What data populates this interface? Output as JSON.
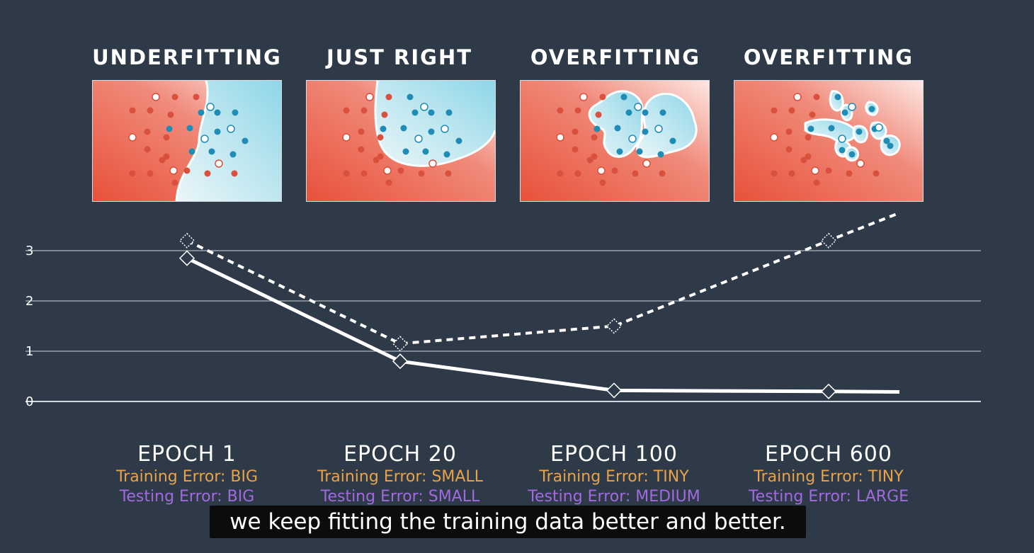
{
  "panels": [
    {
      "title": "UNDERFITTING"
    },
    {
      "title": "JUST RIGHT"
    },
    {
      "title": "OVERFITTING"
    },
    {
      "title": "OVERFITTING"
    }
  ],
  "epochs": [
    {
      "label": "EPOCH 1",
      "training": "Training Error: BIG",
      "testing": "Testing Error: BIG"
    },
    {
      "label": "EPOCH 20",
      "training": "Training Error: SMALL",
      "testing": "Testing Error: SMALL"
    },
    {
      "label": "EPOCH 100",
      "training": "Training Error: TINY",
      "testing": "Testing Error: MEDIUM"
    },
    {
      "label": "EPOCH 600",
      "training": "Training Error: TINY",
      "testing": "Testing Error: LARGE"
    }
  ],
  "caption": "we keep fitting the training data better and better.",
  "colors": {
    "background": "#2e3a47",
    "red_region": "#e8604b",
    "blue_region": "#a7dfea",
    "red_point": "#d9503c",
    "blue_point": "#1e8cb5",
    "training_text": "#e8a24a",
    "testing_text": "#a26ae0"
  },
  "chart_data": {
    "type": "line",
    "x": [
      "EPOCH 1",
      "EPOCH 20",
      "EPOCH 100",
      "EPOCH 600"
    ],
    "y_ticks": [
      "0",
      "1",
      "2",
      "3"
    ],
    "ylim": [
      0,
      3.3
    ],
    "grid": true,
    "series": [
      {
        "style": "solid",
        "values": [
          2.85,
          0.8,
          0.22,
          0.2
        ]
      },
      {
        "style": "dashed",
        "values": [
          3.2,
          1.15,
          1.5,
          3.2
        ]
      }
    ]
  }
}
